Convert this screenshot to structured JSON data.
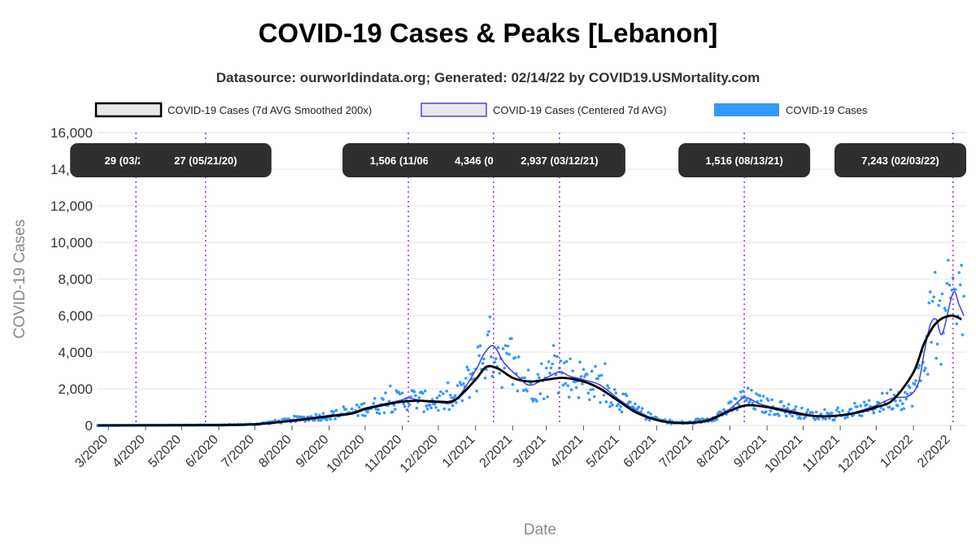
{
  "title": "COVID-19 Cases & Peaks [Lebanon]",
  "subtitle": "Datasource: ourworldindata.org; Generated: 02/14/22 by COVID19.USMortality.com",
  "colors": {
    "smoothed": "#000000",
    "centered": "#4a47e0",
    "daily": "#3399ff",
    "peak_line": "#9933ff",
    "peak_box": "#2f2f2f",
    "grid": "#e3e3e3"
  },
  "chart_data": {
    "type": "line",
    "xlabel": "Date",
    "ylabel": "COVID-19 Cases",
    "ylim": [
      0,
      16000
    ],
    "yticks": [
      0,
      2000,
      4000,
      6000,
      8000,
      10000,
      12000,
      14000,
      16000
    ],
    "ytick_labels": [
      "0",
      "2,000",
      "4,000",
      "6,000",
      "8,000",
      "10,000",
      "12,000",
      "14,000",
      "16,000"
    ],
    "xlim": [
      "2020-02-21",
      "2022-02-14"
    ],
    "xticks": [
      "2020-03-01",
      "2020-04-01",
      "2020-05-01",
      "2020-06-01",
      "2020-07-01",
      "2020-08-01",
      "2020-09-01",
      "2020-10-01",
      "2020-11-01",
      "2020-12-01",
      "2021-01-01",
      "2021-02-01",
      "2021-03-01",
      "2021-04-01",
      "2021-05-01",
      "2021-06-01",
      "2021-07-01",
      "2021-08-01",
      "2021-09-01",
      "2021-10-01",
      "2021-11-01",
      "2021-12-01",
      "2022-01-01",
      "2022-02-01"
    ],
    "xtick_labels": [
      "3/2020",
      "4/2020",
      "5/2020",
      "6/2020",
      "7/2020",
      "8/2020",
      "9/2020",
      "10/2020",
      "11/2020",
      "12/2020",
      "1/2021",
      "2/2021",
      "3/2021",
      "4/2021",
      "5/2021",
      "6/2021",
      "7/2021",
      "8/2021",
      "9/2021",
      "10/2021",
      "11/2021",
      "12/2021",
      "1/2022",
      "2/2022"
    ],
    "grid": true,
    "legend_position": "top",
    "legend": [
      {
        "label": "COVID-19 Cases (7d AVG Smoothed 200x)",
        "key": "smoothed"
      },
      {
        "label": "COVID-19 Cases (Centered 7d AVG)",
        "key": "centered"
      },
      {
        "label": "COVID-19 Cases",
        "key": "daily"
      }
    ],
    "series": [
      {
        "key": "smoothed",
        "name": "COVID-19 Cases (7d AVG Smoothed 200x)",
        "x": [
          "2020-02-21",
          "2020-04-01",
          "2020-06-01",
          "2020-07-01",
          "2020-08-01",
          "2020-08-20",
          "2020-09-01",
          "2020-09-20",
          "2020-10-01",
          "2020-10-15",
          "2020-11-01",
          "2020-11-15",
          "2020-12-01",
          "2020-12-15",
          "2021-01-01",
          "2021-01-10",
          "2021-01-20",
          "2021-02-01",
          "2021-02-15",
          "2021-03-01",
          "2021-03-15",
          "2021-04-01",
          "2021-04-15",
          "2021-05-01",
          "2021-05-15",
          "2021-06-01",
          "2021-06-15",
          "2021-07-01",
          "2021-07-15",
          "2021-08-01",
          "2021-08-15",
          "2021-09-01",
          "2021-09-15",
          "2021-10-01",
          "2021-10-15",
          "2021-11-01",
          "2021-11-15",
          "2021-12-01",
          "2021-12-15",
          "2022-01-01",
          "2022-01-10",
          "2022-01-20",
          "2022-02-01",
          "2022-02-10"
        ],
        "y": [
          0,
          5,
          20,
          60,
          250,
          400,
          500,
          650,
          900,
          1100,
          1300,
          1350,
          1300,
          1400,
          2500,
          3200,
          3100,
          2600,
          2400,
          2500,
          2600,
          2400,
          2000,
          1300,
          700,
          300,
          150,
          150,
          300,
          800,
          1100,
          1000,
          800,
          600,
          500,
          550,
          700,
          1000,
          1400,
          2900,
          4500,
          5600,
          6000,
          5800
        ]
      },
      {
        "key": "centered",
        "name": "COVID-19 Cases (Centered 7d AVG)",
        "x": [
          "2020-02-21",
          "2020-04-01",
          "2020-06-01",
          "2020-07-01",
          "2020-08-01",
          "2020-08-20",
          "2020-09-01",
          "2020-09-20",
          "2020-10-01",
          "2020-10-15",
          "2020-11-01",
          "2020-11-06",
          "2020-11-20",
          "2020-12-01",
          "2020-12-15",
          "2021-01-01",
          "2021-01-08",
          "2021-01-16",
          "2021-01-25",
          "2021-02-05",
          "2021-02-15",
          "2021-03-01",
          "2021-03-12",
          "2021-03-20",
          "2021-04-01",
          "2021-04-15",
          "2021-05-01",
          "2021-05-15",
          "2021-06-01",
          "2021-06-15",
          "2021-07-01",
          "2021-07-15",
          "2021-08-01",
          "2021-08-13",
          "2021-08-25",
          "2021-09-05",
          "2021-09-15",
          "2021-10-01",
          "2021-10-15",
          "2021-11-01",
          "2021-11-15",
          "2021-12-01",
          "2021-12-15",
          "2021-12-28",
          "2022-01-05",
          "2022-01-10",
          "2022-01-15",
          "2022-01-20",
          "2022-01-25",
          "2022-02-03",
          "2022-02-08",
          "2022-02-12"
        ],
        "y": [
          0,
          10,
          20,
          60,
          300,
          450,
          550,
          700,
          950,
          1150,
          1400,
          1506,
          1300,
          1250,
          1350,
          3000,
          3900,
          4346,
          3400,
          2700,
          2200,
          2600,
          2937,
          2700,
          2500,
          2200,
          1400,
          800,
          300,
          150,
          150,
          350,
          900,
          1516,
          1200,
          1000,
          900,
          650,
          500,
          550,
          750,
          1100,
          1500,
          1600,
          2300,
          4000,
          5500,
          5800,
          5000,
          7243,
          6600,
          6000
        ]
      }
    ],
    "peaks": [
      {
        "label": "29 (03/24/20)",
        "date": "2020-03-24",
        "value": 29
      },
      {
        "label": "27 (05/21/20)",
        "date": "2020-05-21",
        "value": 27
      },
      {
        "label": "1,506 (11/06/20)",
        "date": "2020-11-06",
        "value": 1506
      },
      {
        "label": "4,346 (01/16/21)",
        "date": "2021-01-16",
        "value": 4346
      },
      {
        "label": "2,937 (03/12/21)",
        "date": "2021-03-12",
        "value": 2937
      },
      {
        "label": "1,516 (08/13/21)",
        "date": "2021-08-13",
        "value": 1516
      },
      {
        "label": "7,243 (02/03/22)",
        "date": "2022-02-03",
        "value": 7243
      }
    ]
  }
}
